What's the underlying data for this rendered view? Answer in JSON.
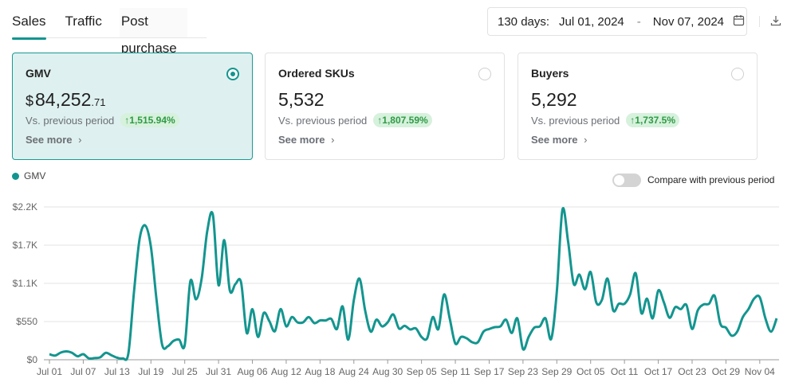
{
  "tabs": [
    {
      "label": "Sales",
      "active": true
    },
    {
      "label": "Traffic"
    },
    {
      "label": "Post purchase"
    }
  ],
  "date_range": {
    "days": "130 days:",
    "start": "Jul 01, 2024",
    "dash": "-",
    "end": "Nov 07, 2024"
  },
  "icons": {
    "calendar": "calendar-icon",
    "download": "download-icon"
  },
  "cards": [
    {
      "title": "GMV",
      "currency": "$",
      "value": "84,252",
      "cents": ".71",
      "vs_label": "Vs. previous period",
      "change": "1,515.94%",
      "see_more": "See more",
      "selected": true
    },
    {
      "title": "Ordered SKUs",
      "value": "5,532",
      "vs_label": "Vs. previous period",
      "change": "1,807.59%",
      "see_more": "See more",
      "selected": false
    },
    {
      "title": "Buyers",
      "value": "5,292",
      "vs_label": "Vs. previous period",
      "change": "1,737.5%",
      "see_more": "See more",
      "selected": false
    }
  ],
  "legend": {
    "series": "GMV"
  },
  "compare": {
    "label": "Compare with previous period",
    "on": false
  },
  "colors": {
    "accent": "#13958f",
    "badge_bg": "#d6f1dc",
    "badge_text": "#2e9a45"
  },
  "chart_data": {
    "type": "line",
    "ylim": [
      0,
      2200
    ],
    "y_ticks": [
      "$0",
      "$550",
      "$1.1K",
      "$1.7K",
      "$2.2K"
    ],
    "y_tick_values": [
      0,
      550,
      1100,
      1650,
      2200
    ],
    "x_ticks": [
      "Jul 01",
      "Jul 07",
      "Jul 13",
      "Jul 19",
      "Jul 25",
      "Jul 31",
      "Aug 06",
      "Aug 12",
      "Aug 18",
      "Aug 24",
      "Aug 30",
      "Sep 05",
      "Sep 11",
      "Sep 17",
      "Sep 23",
      "Sep 29",
      "Oct 05",
      "Oct 11",
      "Oct 17",
      "Oct 23",
      "Oct 29",
      "Nov 04"
    ],
    "grid": true,
    "legend_position": "top-left",
    "series": [
      {
        "name": "GMV",
        "color": "#13958f",
        "values": [
          80,
          60,
          103,
          120,
          100,
          50,
          80,
          20,
          25,
          35,
          100,
          65,
          30,
          20,
          90,
          978,
          1742,
          1933,
          1626,
          861,
          214,
          195,
          271,
          290,
          214,
          1131,
          870,
          1168,
          1856,
          2085,
          1073,
          1723,
          997,
          1092,
          1111,
          385,
          729,
          328,
          672,
          557,
          412,
          729,
          481,
          615,
          539,
          539,
          615,
          527,
          566,
          566,
          588,
          443,
          768,
          290,
          861,
          1168,
          710,
          405,
          577,
          481,
          539,
          653,
          451,
          489,
          436,
          451,
          328,
          309,
          615,
          443,
          940,
          596,
          233,
          328,
          309,
          252,
          252,
          405,
          443,
          470,
          481,
          577,
          385,
          596,
          153,
          328,
          462,
          481,
          596,
          300,
          978,
          2161,
          1703,
          1092,
          1226,
          1015,
          1264,
          825,
          861,
          1168,
          710,
          806,
          806,
          940,
          1245,
          672,
          880,
          596,
          997,
          825,
          604,
          757,
          729,
          787,
          443,
          710,
          795,
          806,
          920,
          520,
          462,
          347,
          405,
          615,
          729,
          880,
          900,
          596,
          405,
          596
        ]
      }
    ],
    "x": [
      "2024-07-01",
      "2024-07-02",
      "2024-07-03",
      "2024-07-04",
      "2024-07-05",
      "2024-07-06",
      "2024-07-07",
      "2024-07-08",
      "2024-07-09",
      "2024-07-10",
      "2024-07-11",
      "2024-07-12",
      "2024-07-13",
      "2024-07-14",
      "2024-07-15",
      "2024-07-16",
      "2024-07-17",
      "2024-07-18",
      "2024-07-19",
      "2024-07-20",
      "2024-07-21",
      "2024-07-22",
      "2024-07-23",
      "2024-07-24",
      "2024-07-25",
      "2024-07-26",
      "2024-07-27",
      "2024-07-28",
      "2024-07-29",
      "2024-07-30",
      "2024-07-31",
      "2024-08-01",
      "2024-08-02",
      "2024-08-03",
      "2024-08-04",
      "2024-08-05",
      "2024-08-06",
      "2024-08-07",
      "2024-08-08",
      "2024-08-09",
      "2024-08-10",
      "2024-08-11",
      "2024-08-12",
      "2024-08-13",
      "2024-08-14",
      "2024-08-15",
      "2024-08-16",
      "2024-08-17",
      "2024-08-18",
      "2024-08-19",
      "2024-08-20",
      "2024-08-21",
      "2024-08-22",
      "2024-08-23",
      "2024-08-24",
      "2024-08-25",
      "2024-08-26",
      "2024-08-27",
      "2024-08-28",
      "2024-08-29",
      "2024-08-30",
      "2024-08-31",
      "2024-09-01",
      "2024-09-02",
      "2024-09-03",
      "2024-09-04",
      "2024-09-05",
      "2024-09-06",
      "2024-09-07",
      "2024-09-08",
      "2024-09-09",
      "2024-09-10",
      "2024-09-11",
      "2024-09-12",
      "2024-09-13",
      "2024-09-14",
      "2024-09-15",
      "2024-09-16",
      "2024-09-17",
      "2024-09-18",
      "2024-09-19",
      "2024-09-20",
      "2024-09-21",
      "2024-09-22",
      "2024-09-23",
      "2024-09-24",
      "2024-09-25",
      "2024-09-26",
      "2024-09-27",
      "2024-09-28",
      "2024-09-29",
      "2024-09-30",
      "2024-10-01",
      "2024-10-02",
      "2024-10-03",
      "2024-10-04",
      "2024-10-05",
      "2024-10-06",
      "2024-10-07",
      "2024-10-08",
      "2024-10-09",
      "2024-10-10",
      "2024-10-11",
      "2024-10-12",
      "2024-10-13",
      "2024-10-14",
      "2024-10-15",
      "2024-10-16",
      "2024-10-17",
      "2024-10-18",
      "2024-10-19",
      "2024-10-20",
      "2024-10-21",
      "2024-10-22",
      "2024-10-23",
      "2024-10-24",
      "2024-10-25",
      "2024-10-26",
      "2024-10-27",
      "2024-10-28",
      "2024-10-29",
      "2024-10-30",
      "2024-10-31",
      "2024-11-01",
      "2024-11-02",
      "2024-11-03",
      "2024-11-04",
      "2024-11-05",
      "2024-11-06",
      "2024-11-07"
    ]
  }
}
